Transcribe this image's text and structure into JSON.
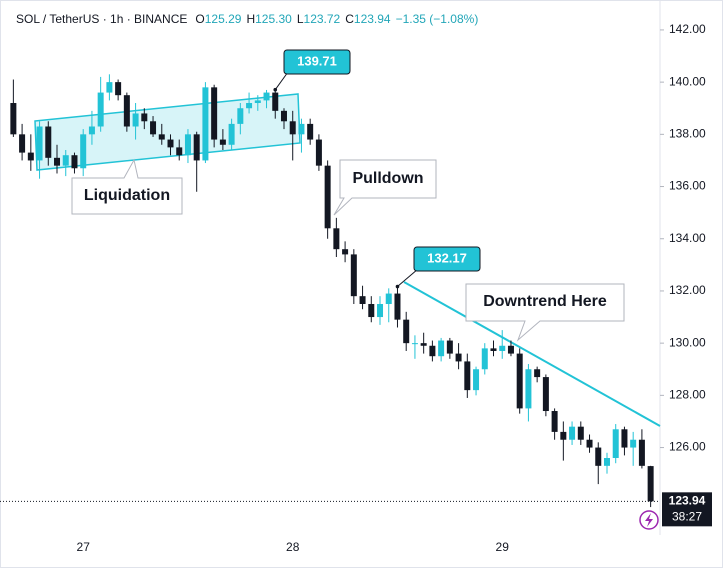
{
  "header": {
    "title": "SOL / TetherUS · 1h · BINANCE",
    "fields": [
      {
        "key": "O",
        "value": "125.29"
      },
      {
        "key": "H",
        "value": "125.30"
      },
      {
        "key": "L",
        "value": "123.72"
      },
      {
        "key": "C",
        "value": "123.94"
      }
    ],
    "change": "−1.35 (−1.08%)"
  },
  "chart_data": {
    "type": "candlestick",
    "categories": [
      null,
      null,
      null,
      null,
      null,
      null,
      null,
      null,
      "27",
      null,
      null,
      null,
      null,
      null,
      null,
      null,
      null,
      null,
      null,
      null,
      null,
      null,
      null,
      null,
      null,
      null,
      null,
      null,
      null,
      null,
      null,
      null,
      "28",
      null,
      null,
      null,
      null,
      null,
      null,
      null,
      null,
      null,
      null,
      null,
      null,
      null,
      null,
      null,
      null,
      null,
      null,
      null,
      null,
      null,
      null,
      null,
      "29",
      null,
      null,
      null,
      null,
      null,
      null,
      null,
      null,
      null,
      null,
      null,
      null,
      null,
      null,
      null,
      null,
      null
    ],
    "open": [
      139.2,
      138.0,
      137.3,
      137.0,
      138.3,
      137.1,
      136.8,
      137.2,
      136.7,
      138.0,
      138.3,
      139.6,
      140.0,
      139.5,
      138.3,
      138.8,
      138.5,
      138.0,
      137.8,
      137.5,
      137.2,
      138.0,
      137.0,
      139.8,
      137.8,
      137.6,
      138.4,
      139.0,
      139.2,
      139.3,
      139.6,
      138.9,
      138.5,
      138.0,
      138.4,
      137.8,
      136.8,
      134.4,
      133.6,
      133.4,
      131.8,
      131.5,
      131.0,
      131.5,
      131.9,
      130.9,
      130.0,
      130.0,
      129.9,
      129.5,
      130.1,
      129.6,
      129.3,
      128.2,
      129.0,
      129.8,
      129.7,
      129.9,
      129.6,
      127.5,
      129.0,
      128.7,
      127.4,
      126.6,
      126.3,
      126.8,
      126.3,
      126.0,
      125.3,
      125.6,
      126.7,
      126.0,
      126.3,
      125.29
    ],
    "high": [
      140.1,
      138.4,
      138.0,
      138.5,
      138.5,
      137.6,
      137.4,
      137.3,
      138.2,
      138.9,
      140.2,
      140.3,
      140.1,
      139.6,
      139.2,
      139.0,
      138.7,
      138.4,
      138.0,
      137.8,
      138.2,
      138.1,
      140.0,
      139.9,
      138.2,
      138.6,
      139.2,
      139.6,
      139.5,
      139.7,
      139.71,
      139.0,
      138.9,
      138.6,
      138.6,
      138.0,
      137.0,
      134.8,
      133.9,
      133.6,
      132.2,
      131.8,
      131.8,
      132.1,
      132.17,
      131.2,
      130.3,
      130.4,
      130.1,
      130.2,
      130.2,
      130.0,
      129.6,
      129.1,
      130.0,
      130.1,
      130.5,
      130.1,
      129.8,
      129.2,
      129.1,
      128.8,
      127.5,
      127.0,
      127.0,
      127.0,
      126.5,
      126.2,
      125.8,
      126.9,
      126.8,
      126.6,
      126.7,
      125.3
    ],
    "low": [
      137.9,
      137.0,
      136.6,
      136.3,
      136.8,
      136.5,
      136.4,
      136.5,
      136.4,
      137.6,
      138.1,
      139.3,
      139.3,
      138.1,
      137.8,
      138.2,
      137.9,
      137.6,
      137.2,
      137.0,
      136.9,
      135.8,
      136.9,
      137.5,
      137.4,
      137.4,
      138.0,
      138.8,
      138.9,
      139.0,
      138.6,
      138.2,
      137.0,
      137.3,
      137.6,
      136.6,
      134.0,
      133.3,
      133.1,
      131.5,
      131.3,
      130.8,
      130.7,
      130.8,
      130.6,
      129.7,
      129.4,
      129.6,
      129.3,
      129.3,
      129.4,
      129.0,
      127.9,
      128.0,
      128.8,
      129.5,
      129.4,
      129.5,
      127.3,
      127.0,
      128.5,
      127.2,
      126.3,
      125.5,
      126.1,
      126.1,
      125.8,
      124.6,
      125.0,
      125.4,
      125.7,
      125.3,
      125.2,
      123.72
    ],
    "close": [
      138.0,
      137.3,
      137.0,
      138.3,
      137.1,
      136.8,
      137.2,
      136.7,
      138.0,
      138.3,
      139.6,
      140.0,
      139.5,
      138.3,
      138.8,
      138.5,
      138.0,
      137.8,
      137.5,
      137.2,
      138.0,
      137.0,
      139.8,
      137.8,
      137.6,
      138.4,
      139.0,
      139.2,
      139.3,
      139.6,
      138.9,
      138.5,
      138.0,
      138.4,
      137.8,
      136.8,
      134.4,
      133.6,
      133.4,
      131.8,
      131.5,
      131.0,
      131.5,
      131.9,
      130.9,
      130.0,
      130.0,
      129.9,
      129.5,
      130.1,
      129.6,
      129.3,
      128.2,
      129.0,
      129.8,
      129.7,
      129.9,
      129.6,
      127.5,
      129.0,
      128.7,
      127.4,
      126.6,
      126.3,
      126.8,
      126.3,
      126.0,
      125.3,
      125.6,
      126.7,
      126.0,
      126.3,
      125.3,
      123.94
    ],
    "up_color": "#22c3d6",
    "down_color": "#131722",
    "ylim": [
      122.65,
      142.84
    ],
    "yticks": [
      {
        "value": 126,
        "label": "126.00"
      },
      {
        "value": 128,
        "label": "128.00"
      },
      {
        "value": 130,
        "label": "130.00"
      },
      {
        "value": 132,
        "label": "132.00"
      },
      {
        "value": 134,
        "label": "134.00"
      },
      {
        "value": 136,
        "label": "136.00"
      },
      {
        "value": 138,
        "label": "138.00"
      },
      {
        "value": 140,
        "label": "140.00"
      },
      {
        "value": 142,
        "label": "142.00"
      }
    ],
    "price_labels": [
      139.71,
      132.17
    ],
    "annotations": [
      "Liquidation",
      "Pulldown",
      "Downtrend Here"
    ],
    "last_price": 123.94,
    "countdown": "38:27"
  }
}
